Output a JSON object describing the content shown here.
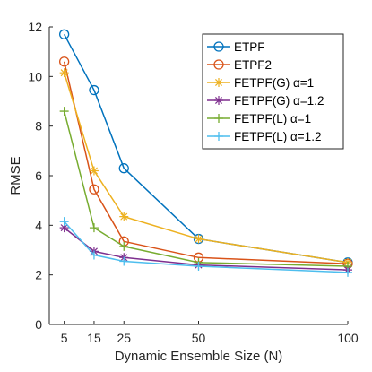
{
  "chart_data": {
    "type": "line",
    "xlabel": "Dynamic Ensemble Size (N)",
    "ylabel": "RMSE",
    "x": [
      5,
      15,
      25,
      50,
      100
    ],
    "xlim": [
      0,
      100
    ],
    "ylim": [
      0,
      12
    ],
    "xticks": [
      5,
      15,
      25,
      50,
      100
    ],
    "yticks": [
      0,
      2,
      4,
      6,
      8,
      10,
      12
    ],
    "grid": false,
    "legend_position": "top-right",
    "series": [
      {
        "name": "ETPF",
        "color": "#0072BD",
        "marker": "circle",
        "values": [
          11.7,
          9.45,
          6.3,
          3.45,
          2.5
        ]
      },
      {
        "name": "ETPF2",
        "color": "#D95319",
        "marker": "circle",
        "values": [
          10.6,
          5.45,
          3.35,
          2.7,
          2.45
        ]
      },
      {
        "name": "FETPF(G) α=1",
        "color": "#EDB120",
        "marker": "asterisk",
        "values": [
          10.15,
          6.2,
          4.35,
          3.45,
          2.5
        ]
      },
      {
        "name": "FETPF(G) α=1.2",
        "color": "#7E2F8E",
        "marker": "asterisk",
        "values": [
          3.9,
          2.95,
          2.7,
          2.4,
          2.2
        ]
      },
      {
        "name": "FETPF(L) α=1",
        "color": "#77AC30",
        "marker": "plus",
        "values": [
          8.6,
          3.9,
          3.15,
          2.5,
          2.35
        ]
      },
      {
        "name": "FETPF(L) α=1.2",
        "color": "#4DBEEE",
        "marker": "plus",
        "values": [
          4.15,
          2.8,
          2.55,
          2.35,
          2.1
        ]
      }
    ]
  }
}
